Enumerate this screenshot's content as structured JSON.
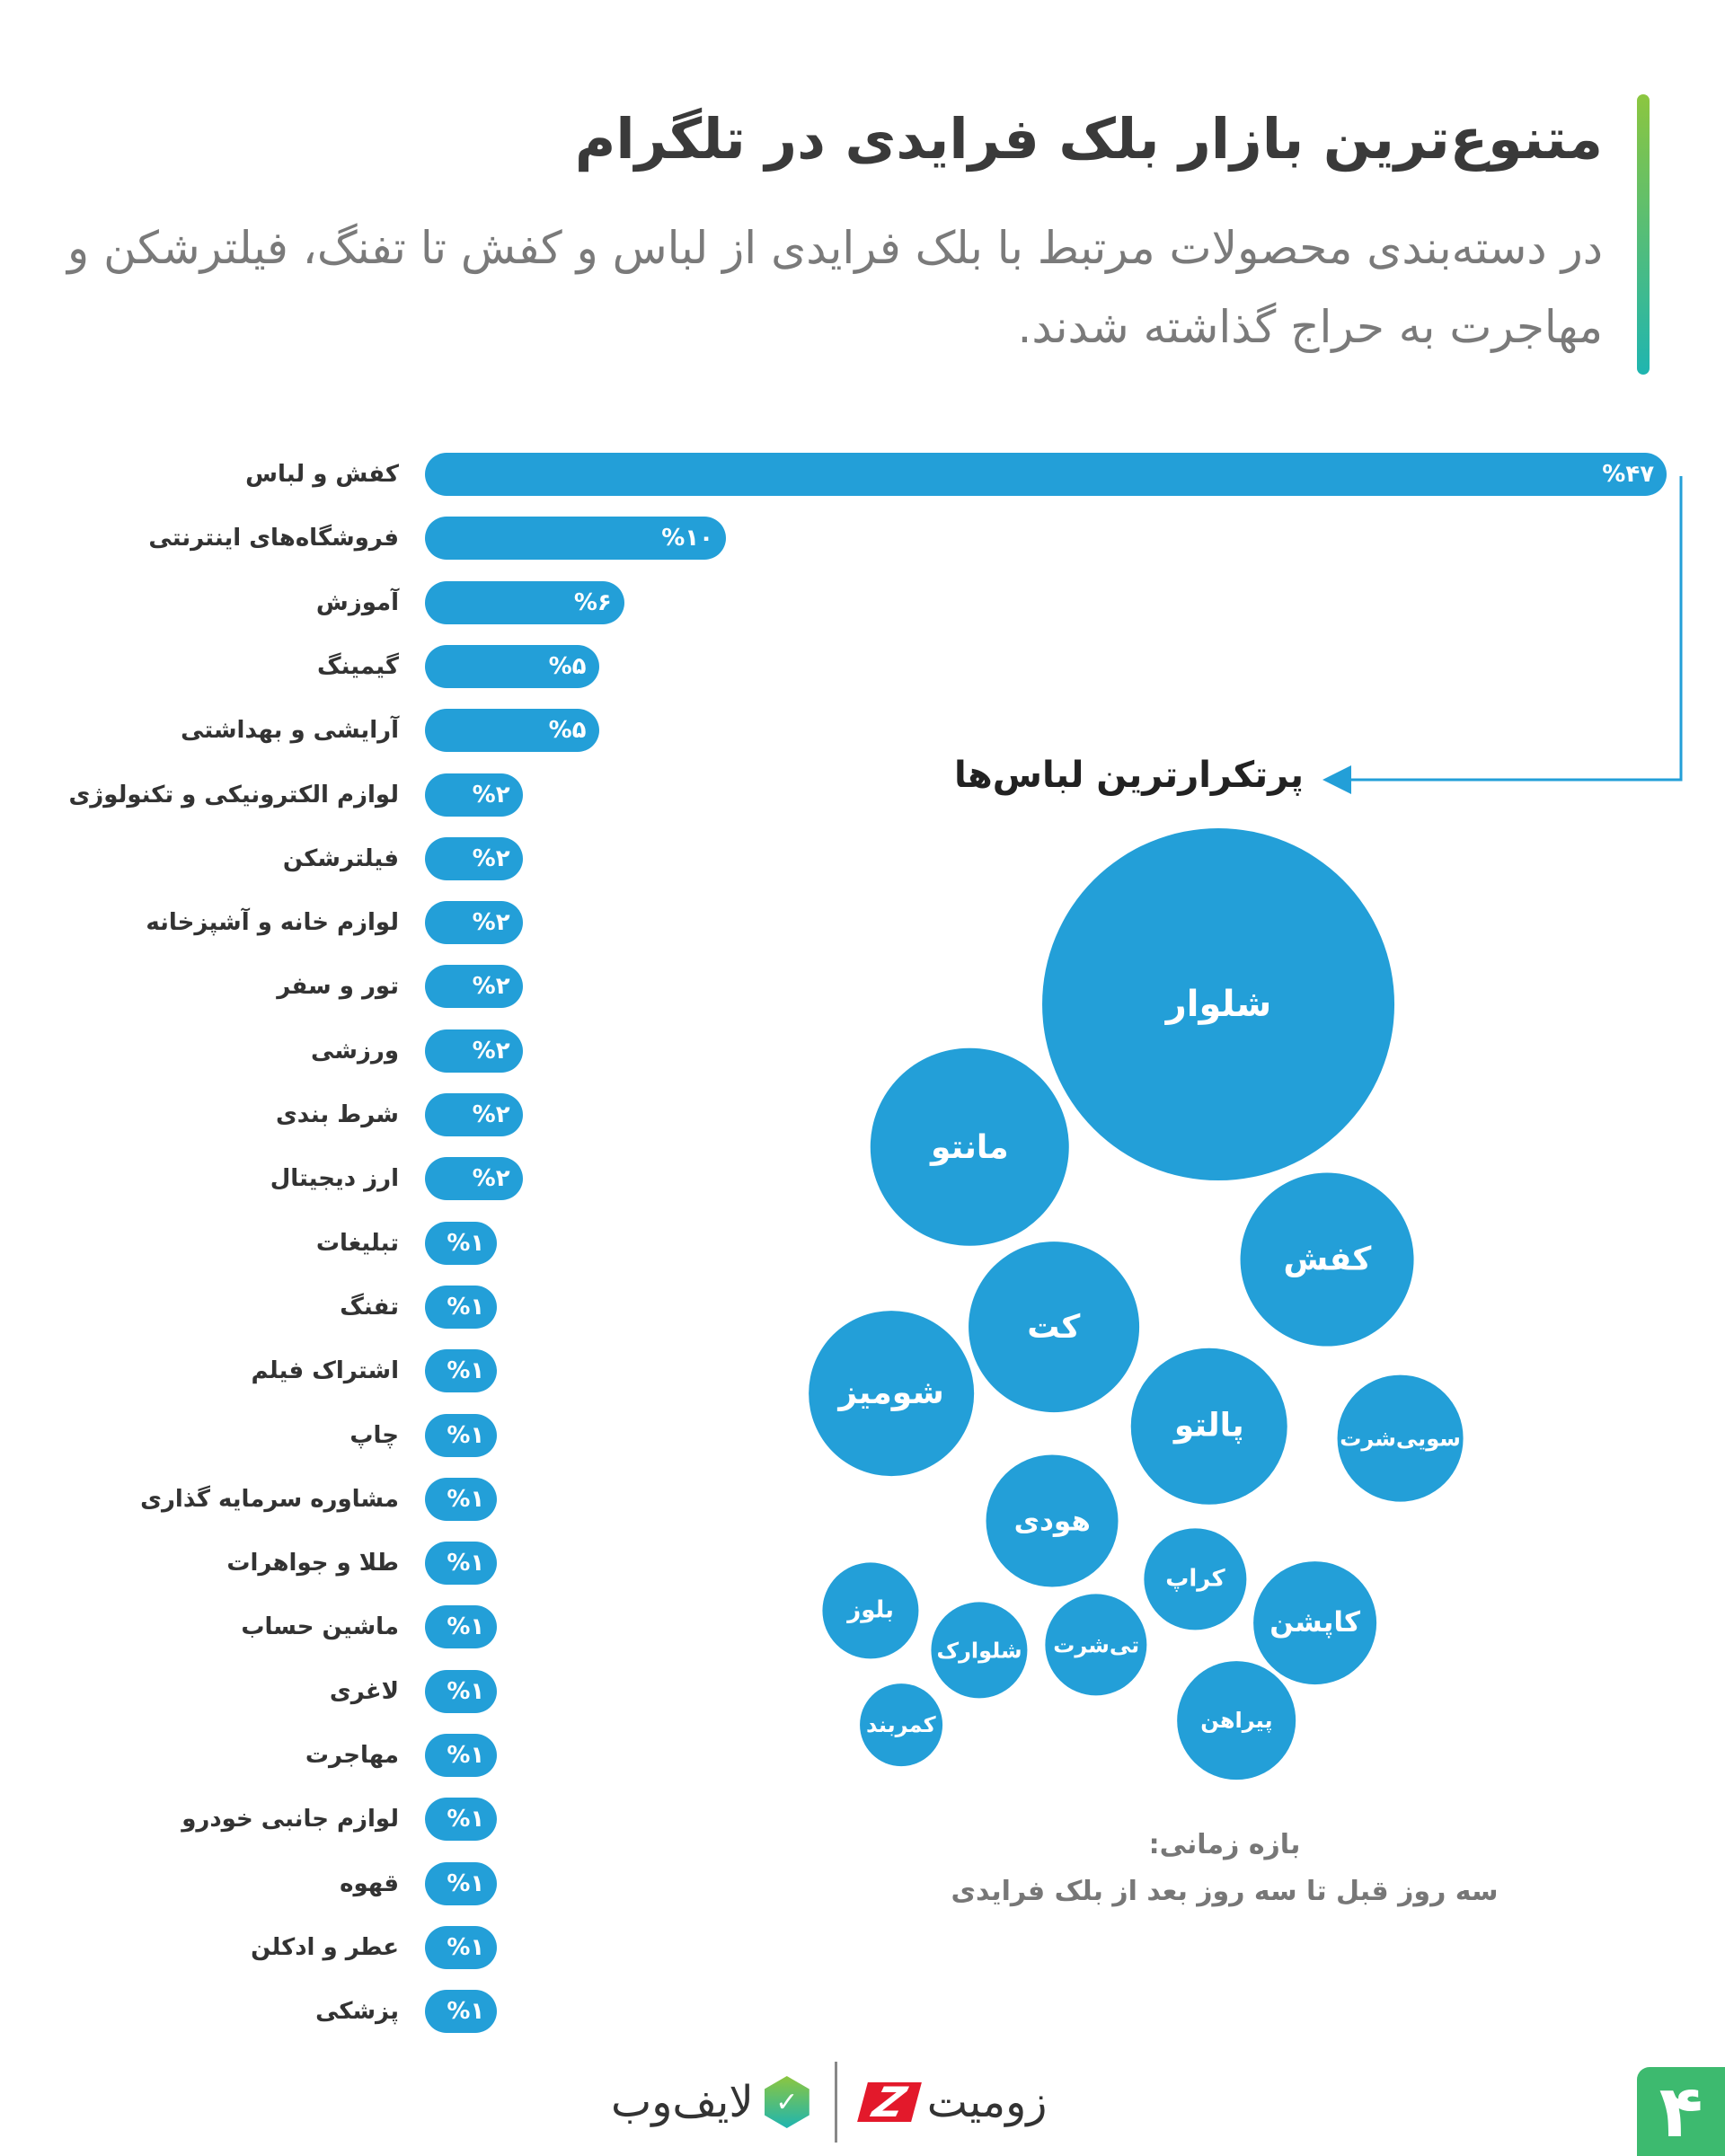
{
  "header": {
    "title": "متنوع‌ترین بازار بلک فرایدی در تلگرام",
    "subtitle": "در دسته‌بندی محصولات مرتبط با بلک فرایدی از لباس و کفش تا تفنگ، فیلترشکن و مهاجرت به حراج گذاشته شدند.",
    "accent_colors": [
      "#8cc63f",
      "#1fb5b0"
    ]
  },
  "chart_data": [
    {
      "type": "bar",
      "orientation": "horizontal",
      "bar_color": "#239fd8",
      "categories": [
        "کفش و لباس",
        "فروشگاه‌های اینترنتی",
        "آموزش",
        "گیمینگ",
        "آرایشی و بهداشتی",
        "لوازم الکترونیکی و تکنولوژی",
        "فیلترشکن",
        "لوازم خانه و آشپزخانه",
        "تور و سفر",
        "ورزشی",
        "شرط بندی",
        "ارز دیجیتال",
        "تبلیغات",
        "تفنگ",
        "اشتراک فیلم",
        "چاپ",
        "مشاوره سرمایه گذاری",
        "طلا و جواهرات",
        "ماشین حساب",
        "لاغری",
        "مهاجرت",
        "لوازم جانبی خودرو",
        "قهوه",
        "عطر و ادکلن",
        "پزشکی"
      ],
      "values": [
        47,
        10,
        6,
        5,
        5,
        2,
        2,
        2,
        2,
        2,
        2,
        2,
        1,
        1,
        1,
        1,
        1,
        1,
        1,
        1,
        1,
        1,
        1,
        1,
        1
      ],
      "value_labels": [
        "%۴۷",
        "%۱۰",
        "%۶",
        "%۵",
        "%۵",
        "%۲",
        "%۲",
        "%۲",
        "%۲",
        "%۲",
        "%۲",
        "%۲",
        "%۱",
        "%۱",
        "%۱",
        "%۱",
        "%۱",
        "%۱",
        "%۱",
        "%۱",
        "%۱",
        "%۱",
        "%۱",
        "%۱",
        "%۱"
      ],
      "unit": "%"
    },
    {
      "type": "bubble",
      "title": "پرتکرارترین لباس‌ها",
      "color": "#239fd8",
      "items": [
        "شلوار",
        "مانتو",
        "کفش",
        "کت",
        "شومیز",
        "پالتو",
        "سویی‌شرت",
        "هودی",
        "کراپ",
        "کاپشن",
        "بلوز",
        "شلوارک",
        "تی‌شرت",
        "پیراهن",
        "کمربند"
      ]
    }
  ],
  "time_range": {
    "label": "بازه زمانی:",
    "value": "سه روز قبل تا سه روز بعد از بلک فرایدی"
  },
  "footer": {
    "brand_right": "زومیت",
    "brand_left": "لایف‌وب",
    "page_number": "۴",
    "page_color": "#3dba6f"
  }
}
